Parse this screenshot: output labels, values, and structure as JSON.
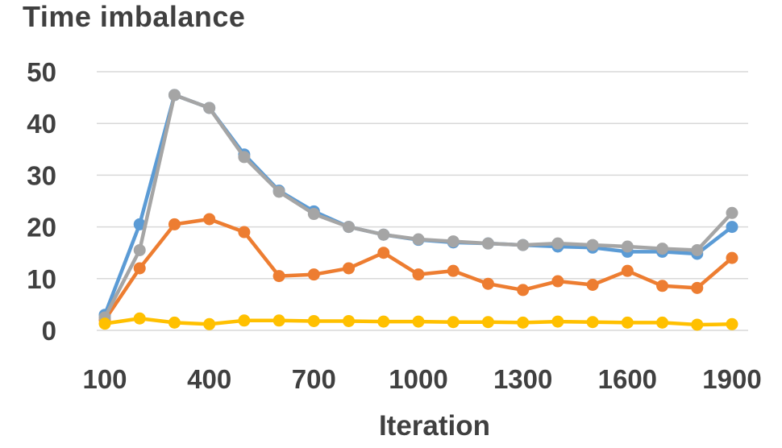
{
  "chart_data": {
    "type": "line",
    "title": "Time imbalance",
    "xlabel": "Iteration",
    "ylabel": "",
    "ylim": [
      0,
      50
    ],
    "xlim": [
      100,
      1900
    ],
    "grid": true,
    "y_ticks": [
      "0",
      "10",
      "20",
      "30",
      "40",
      "50"
    ],
    "x_ticks": [
      "100",
      "400",
      "700",
      "1000",
      "1300",
      "1600",
      "1900"
    ],
    "x": [
      100,
      200,
      300,
      400,
      500,
      600,
      700,
      800,
      900,
      1000,
      1100,
      1200,
      1300,
      1400,
      1500,
      1600,
      1700,
      1800,
      1900
    ],
    "series": [
      {
        "color": "#5b9bd5",
        "values": [
          3,
          20.5,
          45.5,
          43,
          34,
          27,
          23,
          20,
          18.5,
          17.5,
          17,
          16.8,
          16.5,
          16.2,
          16,
          15.2,
          15.2,
          14.8,
          20
        ]
      },
      {
        "color": "#ed7d31",
        "values": [
          2,
          12,
          20.5,
          21.5,
          19,
          10.5,
          10.8,
          12,
          15,
          10.8,
          11.5,
          9,
          7.8,
          9.5,
          8.8,
          11.5,
          8.6,
          8.2,
          14
        ]
      },
      {
        "color": "#a5a5a5",
        "values": [
          2.5,
          15.5,
          45.5,
          43,
          33.5,
          26.8,
          22.5,
          20,
          18.5,
          17.6,
          17.2,
          16.8,
          16.5,
          16.8,
          16.5,
          16.2,
          15.8,
          15.5,
          22.7
        ]
      },
      {
        "color": "#ffc000",
        "values": [
          1.3,
          2.3,
          1.5,
          1.2,
          1.9,
          1.9,
          1.8,
          1.8,
          1.7,
          1.7,
          1.6,
          1.6,
          1.5,
          1.7,
          1.6,
          1.5,
          1.5,
          1.1,
          1.2
        ]
      }
    ]
  }
}
